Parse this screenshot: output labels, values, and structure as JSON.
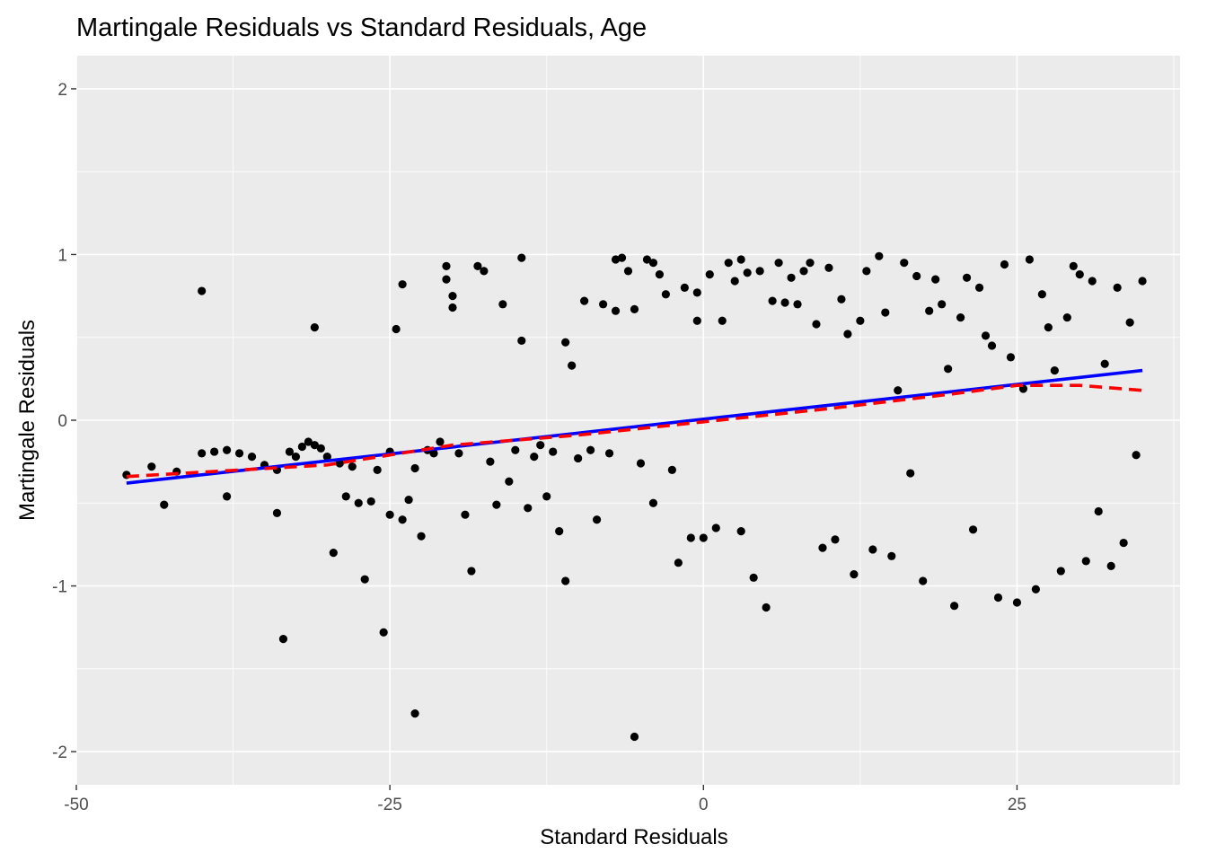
{
  "chart_data": {
    "type": "scatter",
    "title": "Martingale Residuals vs Standard Residuals, Age",
    "xlabel": "Standard Residuals",
    "ylabel": "Martingale Residuals",
    "xlim": [
      -50,
      38
    ],
    "ylim": [
      -2.2,
      2.2
    ],
    "x_ticks": [
      -50,
      -25,
      0,
      25
    ],
    "x_tick_labels": [
      "-50",
      "-25",
      "0",
      "25"
    ],
    "y_ticks": [
      -2,
      -1,
      0,
      1,
      2
    ],
    "y_tick_labels": [
      "-2",
      "-1",
      "0",
      "1",
      "2"
    ],
    "grid": true,
    "legend": "none",
    "colors": {
      "panel_background": "#EBEBEB",
      "grid": "#FFFFFF",
      "points": "#000000",
      "linear_fit": "#0000FF",
      "smooth_fit": "#FF0000"
    },
    "series": [
      {
        "type": "scatter",
        "color": "#000000",
        "points": [
          [
            -46,
            -0.33
          ],
          [
            -44,
            -0.28
          ],
          [
            -43,
            -0.51
          ],
          [
            -42,
            -0.31
          ],
          [
            -40,
            0.78
          ],
          [
            -40,
            -0.2
          ],
          [
            -39,
            -0.19
          ],
          [
            -38,
            -0.18
          ],
          [
            -38,
            -0.46
          ],
          [
            -37,
            -0.2
          ],
          [
            -36,
            -0.22
          ],
          [
            -35,
            -0.27
          ],
          [
            -34,
            -0.3
          ],
          [
            -34,
            -0.56
          ],
          [
            -33.5,
            -1.32
          ],
          [
            -33,
            -0.19
          ],
          [
            -32.5,
            -0.22
          ],
          [
            -32,
            -0.16
          ],
          [
            -31.5,
            -0.13
          ],
          [
            -31,
            -0.15
          ],
          [
            -31,
            0.56
          ],
          [
            -30.5,
            -0.17
          ],
          [
            -30,
            -0.22
          ],
          [
            -29.5,
            -0.8
          ],
          [
            -29,
            -0.26
          ],
          [
            -28.5,
            -0.46
          ],
          [
            -28,
            -0.28
          ],
          [
            -27.5,
            -0.5
          ],
          [
            -27,
            -0.96
          ],
          [
            -26.5,
            -0.49
          ],
          [
            -26,
            -0.3
          ],
          [
            -25.5,
            -1.28
          ],
          [
            -25,
            -0.19
          ],
          [
            -25,
            -0.57
          ],
          [
            -24.5,
            0.55
          ],
          [
            -24,
            0.82
          ],
          [
            -24,
            -0.6
          ],
          [
            -23.5,
            -0.48
          ],
          [
            -23,
            -0.29
          ],
          [
            -23,
            -1.77
          ],
          [
            -22.5,
            -0.7
          ],
          [
            -22,
            -0.18
          ],
          [
            -21.5,
            -0.2
          ],
          [
            -21,
            -0.13
          ],
          [
            -20.5,
            0.93
          ],
          [
            -20.5,
            0.85
          ],
          [
            -20,
            0.75
          ],
          [
            -20,
            0.68
          ],
          [
            -19.5,
            -0.2
          ],
          [
            -19,
            -0.57
          ],
          [
            -18.5,
            -0.91
          ],
          [
            -18,
            0.93
          ],
          [
            -17.5,
            0.9
          ],
          [
            -17,
            -0.25
          ],
          [
            -16.5,
            -0.51
          ],
          [
            -16,
            0.7
          ],
          [
            -15.5,
            -0.37
          ],
          [
            -15,
            -0.18
          ],
          [
            -14.5,
            0.98
          ],
          [
            -14.5,
            0.48
          ],
          [
            -14,
            -0.53
          ],
          [
            -13.5,
            -0.22
          ],
          [
            -13,
            -0.15
          ],
          [
            -12.5,
            -0.46
          ],
          [
            -12,
            -0.19
          ],
          [
            -11.5,
            -0.67
          ],
          [
            -11,
            -0.97
          ],
          [
            -11,
            0.47
          ],
          [
            -10.5,
            0.33
          ],
          [
            -10,
            -0.23
          ],
          [
            -9.5,
            0.72
          ],
          [
            -9,
            -0.18
          ],
          [
            -8.5,
            -0.6
          ],
          [
            -8,
            0.7
          ],
          [
            -7.5,
            -0.2
          ],
          [
            -7,
            0.97
          ],
          [
            -7,
            0.66
          ],
          [
            -6.5,
            0.98
          ],
          [
            -6,
            0.9
          ],
          [
            -5.5,
            -1.91
          ],
          [
            -5.5,
            0.67
          ],
          [
            -5,
            -0.26
          ],
          [
            -4.5,
            0.97
          ],
          [
            -4,
            0.95
          ],
          [
            -4,
            -0.5
          ],
          [
            -3.5,
            0.88
          ],
          [
            -3,
            0.76
          ],
          [
            -2.5,
            -0.3
          ],
          [
            -2,
            -0.86
          ],
          [
            -1.5,
            0.8
          ],
          [
            -1,
            -0.71
          ],
          [
            -0.5,
            0.77
          ],
          [
            -0.5,
            0.6
          ],
          [
            0,
            -0.71
          ],
          [
            0.5,
            0.88
          ],
          [
            1,
            -0.65
          ],
          [
            1.5,
            0.6
          ],
          [
            2,
            0.95
          ],
          [
            2.5,
            0.84
          ],
          [
            3,
            0.97
          ],
          [
            3,
            -0.67
          ],
          [
            3.5,
            0.89
          ],
          [
            4,
            -0.95
          ],
          [
            4.5,
            0.9
          ],
          [
            5,
            -1.13
          ],
          [
            5.5,
            0.72
          ],
          [
            6,
            0.95
          ],
          [
            6.5,
            0.71
          ],
          [
            7,
            0.86
          ],
          [
            7.5,
            0.7
          ],
          [
            8,
            0.9
          ],
          [
            8.5,
            0.95
          ],
          [
            9,
            0.58
          ],
          [
            9.5,
            -0.77
          ],
          [
            10,
            0.92
          ],
          [
            10.5,
            -0.72
          ],
          [
            11,
            0.73
          ],
          [
            11.5,
            0.52
          ],
          [
            12,
            -0.93
          ],
          [
            12.5,
            0.6
          ],
          [
            13,
            0.9
          ],
          [
            13.5,
            -0.78
          ],
          [
            14,
            0.99
          ],
          [
            14.5,
            0.65
          ],
          [
            15,
            -0.82
          ],
          [
            15.5,
            0.18
          ],
          [
            16,
            0.95
          ],
          [
            16.5,
            -0.32
          ],
          [
            17,
            0.87
          ],
          [
            17.5,
            -0.97
          ],
          [
            18,
            0.66
          ],
          [
            18.5,
            0.85
          ],
          [
            19,
            0.7
          ],
          [
            19.5,
            0.31
          ],
          [
            20,
            -1.12
          ],
          [
            20.5,
            0.62
          ],
          [
            21,
            0.86
          ],
          [
            21.5,
            -0.66
          ],
          [
            22,
            0.8
          ],
          [
            22.5,
            0.51
          ],
          [
            23,
            0.45
          ],
          [
            23.5,
            -1.07
          ],
          [
            24,
            0.94
          ],
          [
            24.5,
            0.38
          ],
          [
            25,
            -1.1
          ],
          [
            25.5,
            0.19
          ],
          [
            26,
            0.97
          ],
          [
            26.5,
            -1.02
          ],
          [
            27,
            0.76
          ],
          [
            27.5,
            0.56
          ],
          [
            28,
            0.3
          ],
          [
            28.5,
            -0.91
          ],
          [
            29,
            0.62
          ],
          [
            29.5,
            0.93
          ],
          [
            30,
            0.88
          ],
          [
            30.5,
            -0.85
          ],
          [
            31,
            0.84
          ],
          [
            31.5,
            -0.55
          ],
          [
            32,
            0.34
          ],
          [
            32.5,
            -0.88
          ],
          [
            33,
            0.8
          ],
          [
            33.5,
            -0.74
          ],
          [
            34,
            0.59
          ],
          [
            34.5,
            -0.21
          ],
          [
            35,
            0.84
          ]
        ]
      },
      {
        "type": "line",
        "color": "#0000FF",
        "points": [
          [
            -46,
            -0.38
          ],
          [
            35,
            0.3
          ]
        ]
      },
      {
        "type": "line",
        "color": "#FF0000",
        "dashed": true,
        "points": [
          [
            -46,
            -0.34
          ],
          [
            -30,
            -0.27
          ],
          [
            -20,
            -0.15
          ],
          [
            -10,
            -0.09
          ],
          [
            0,
            -0.01
          ],
          [
            10,
            0.07
          ],
          [
            20,
            0.16
          ],
          [
            25,
            0.21
          ],
          [
            30,
            0.21
          ],
          [
            35,
            0.18
          ]
        ]
      }
    ]
  }
}
